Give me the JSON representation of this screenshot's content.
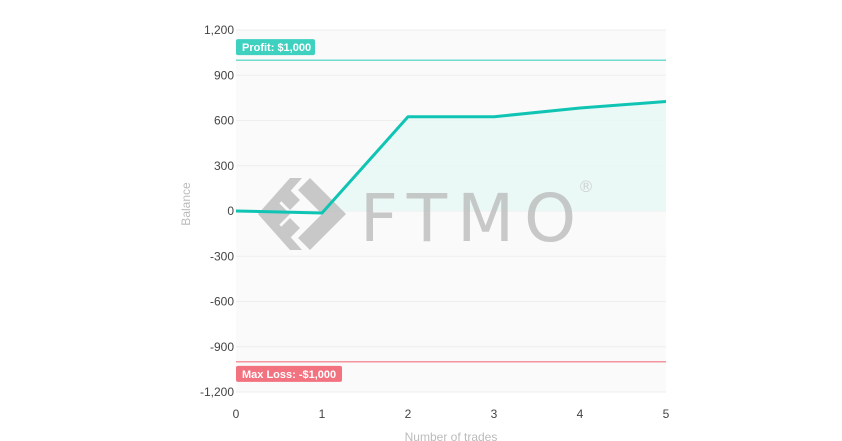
{
  "chart_data": {
    "type": "line",
    "title": "",
    "xlabel": "Number of trades",
    "ylabel": "Balance",
    "x": [
      0,
      1,
      2,
      3,
      4,
      5
    ],
    "series": [
      {
        "name": "Balance",
        "values": [
          0,
          -13,
          625,
          625,
          683,
          726
        ],
        "color": "#10c4b4"
      }
    ],
    "xlim": [
      0,
      5
    ],
    "ylim": [
      -1200,
      1200
    ],
    "x_ticks": [
      "0",
      "1",
      "2",
      "3",
      "4",
      "5"
    ],
    "y_ticks": [
      "1,200",
      "900",
      "600",
      "300",
      "0",
      "-300",
      "-600",
      "-900",
      "-1,200"
    ],
    "y_tick_values": [
      1200,
      900,
      600,
      300,
      0,
      -300,
      -600,
      -900,
      -1200
    ],
    "grid": true,
    "legend": null,
    "annotations": [
      {
        "type": "hline",
        "value": 1000,
        "label": "Profit: $1,000",
        "color": "#3fd1c0"
      },
      {
        "type": "hline",
        "value": -1000,
        "label": "Max Loss: -$1,000",
        "color": "#f2727f"
      }
    ]
  },
  "watermark": {
    "text": "FTMO",
    "registered": "®"
  },
  "colors": {
    "line": "#10c4b4",
    "area_fill": "#e6f7f5",
    "plot_bg": "#fafafa",
    "grid": "#eeeeee",
    "profit": "#3fd1c0",
    "loss": "#f2727f"
  }
}
